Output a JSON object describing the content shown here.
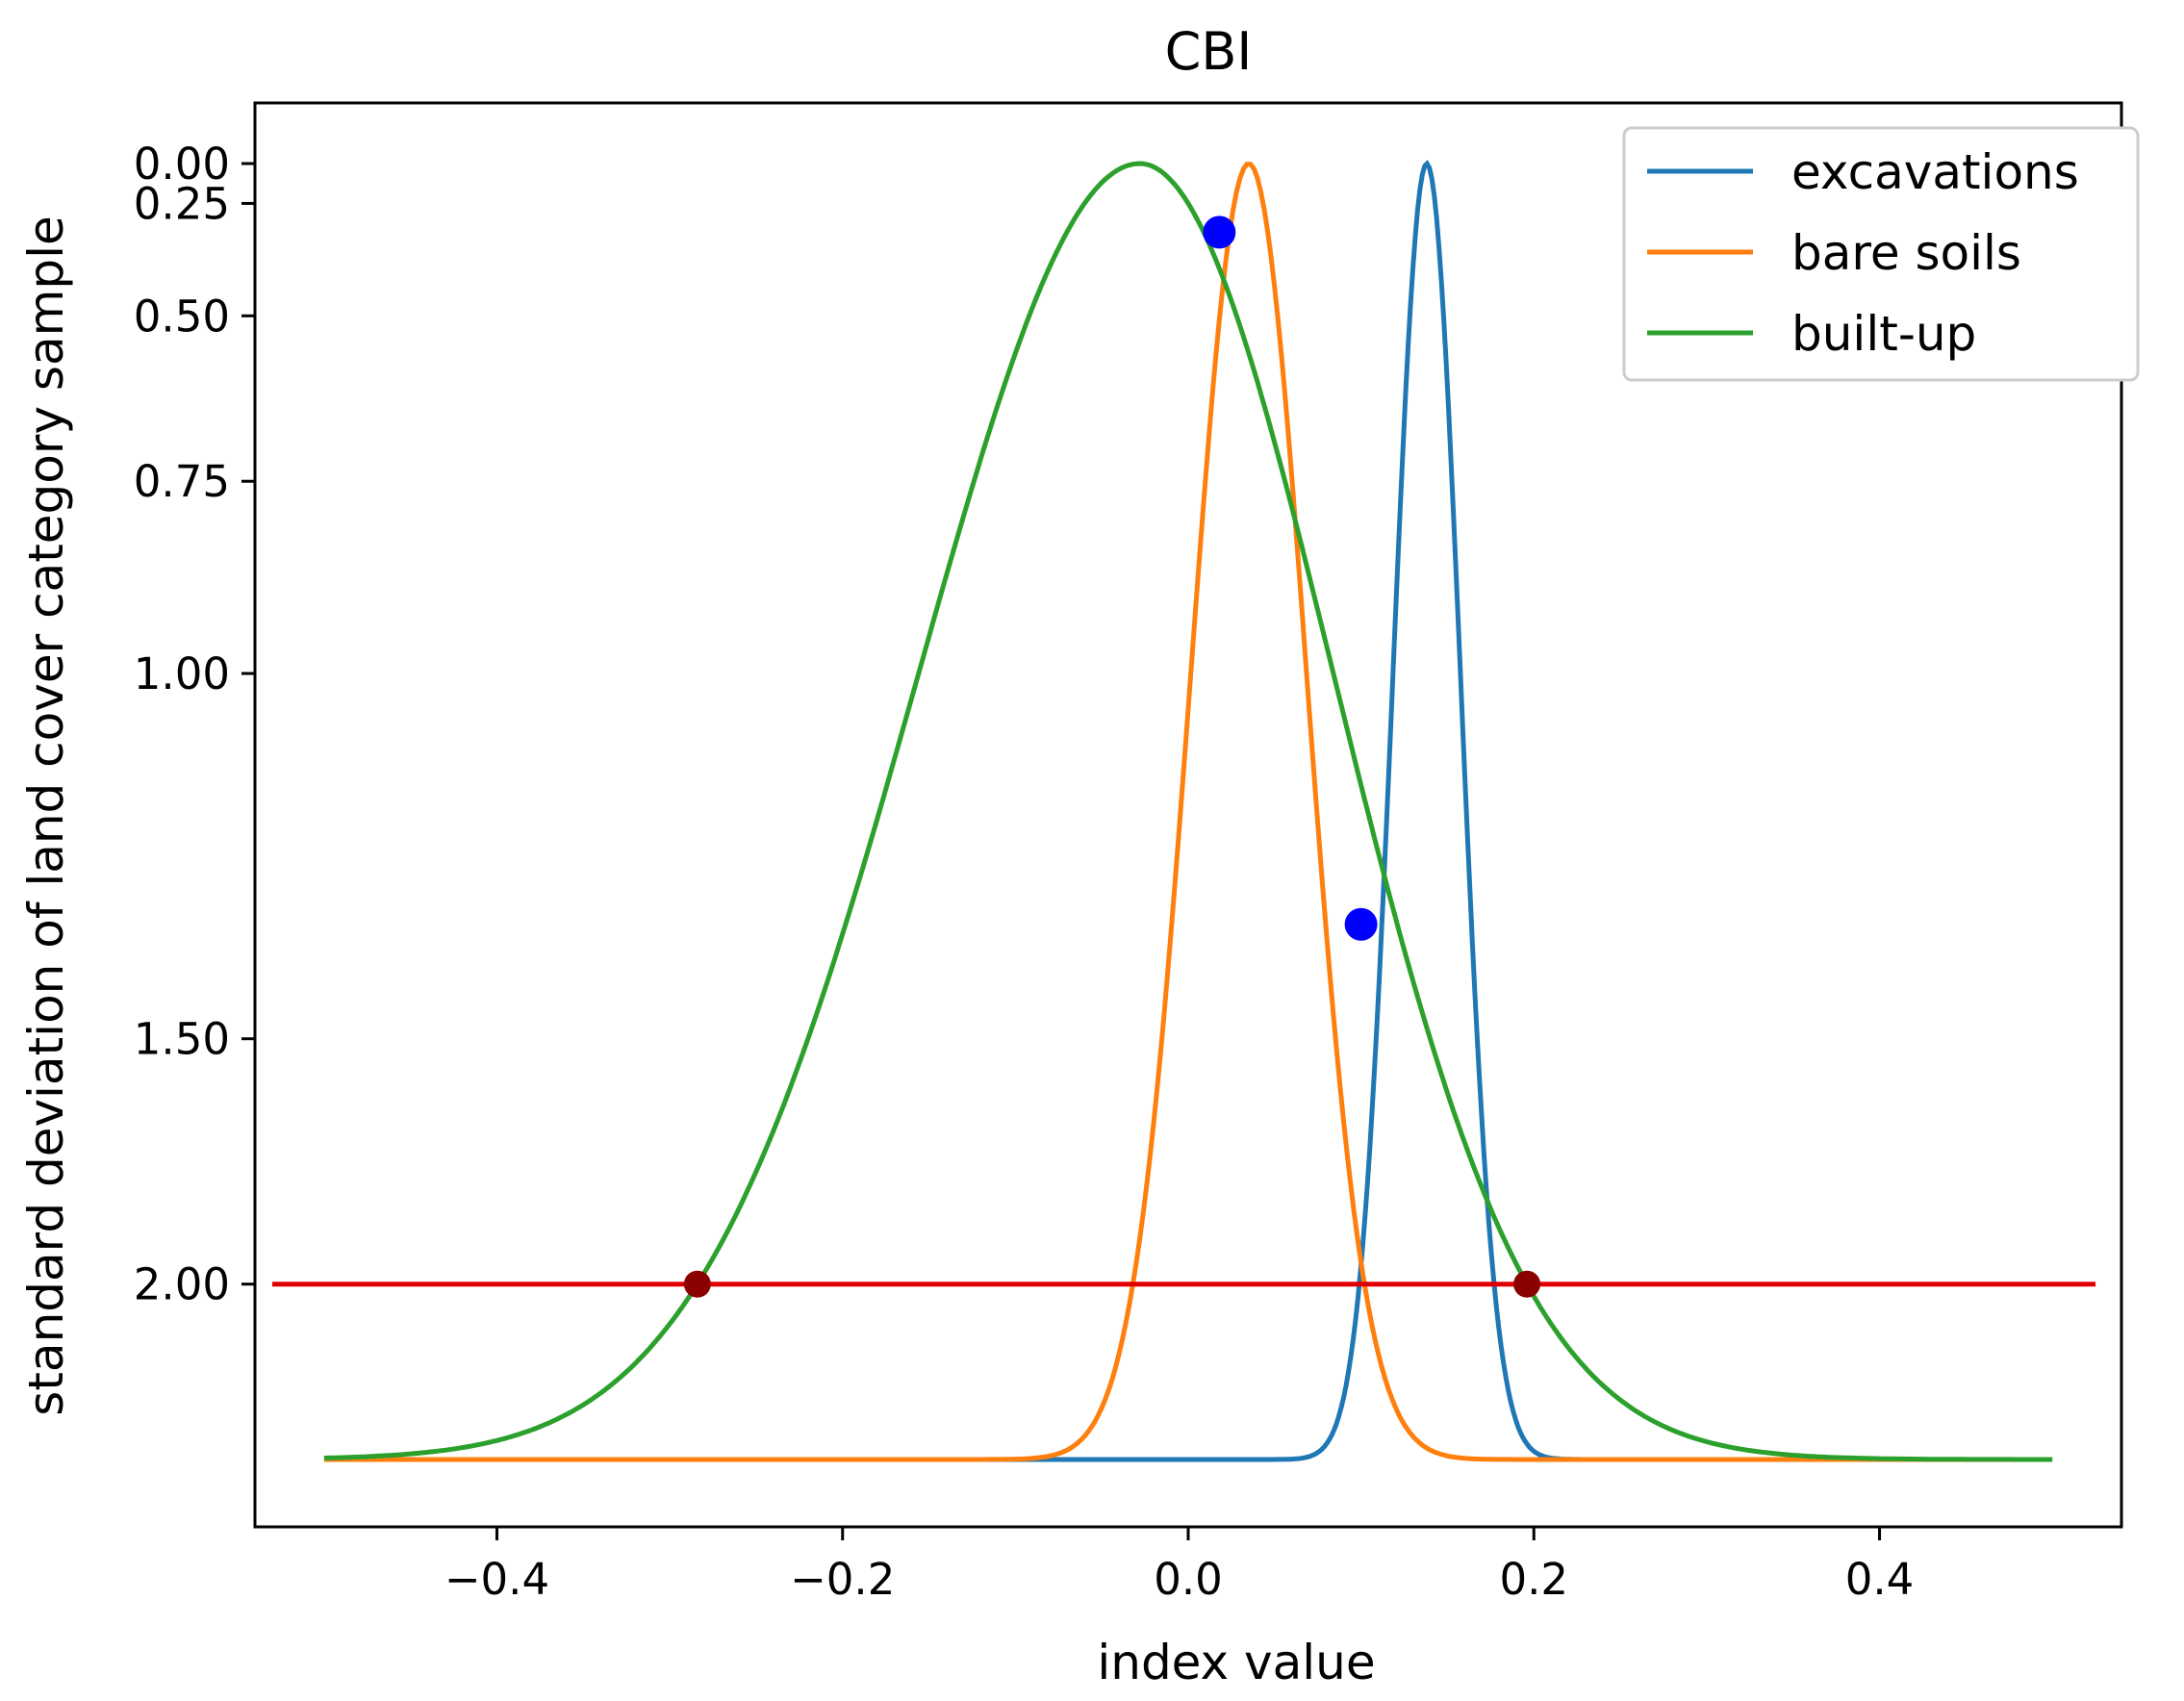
{
  "chart_data": {
    "type": "line",
    "title": "CBI",
    "xlabel": "index value",
    "ylabel": "standard deviation of land cover category sample",
    "xlim": [
      -0.54,
      0.54
    ],
    "ylim": [
      2.55,
      -0.12
    ],
    "x_ticks": [
      -0.4,
      -0.2,
      0.0,
      0.2,
      0.4
    ],
    "x_tick_labels": [
      "−0.4",
      "−0.2",
      "0.0",
      "0.2",
      "0.4"
    ],
    "y_ticks": [
      0.0,
      0.25,
      0.5,
      0.75,
      1.0,
      1.5,
      2.0
    ],
    "y_tick_labels": [
      "0.00",
      "0.25",
      "0.50",
      "0.75",
      "1.00",
      "1.50",
      "2.00"
    ],
    "y_scale_note": "y is the number of standard deviations from the category mean; axis is inverted (0 at top)",
    "legend_position": "top-right",
    "series": [
      {
        "name": "excavations",
        "color": "#1f77b4",
        "mean": 0.138,
        "sd": 0.0195,
        "x_range": [
          -0.4,
          0.29
        ]
      },
      {
        "name": "bare soils",
        "color": "#ff7f0e",
        "mean": 0.035,
        "sd": 0.0335,
        "x_range": [
          -0.5,
          0.5
        ]
      },
      {
        "name": "built-up",
        "color": "#2ca02c",
        "mean": -0.028,
        "sd": 0.128,
        "x_range": [
          -0.5,
          0.5
        ],
        "left_sd": 0.128,
        "right_sd": 0.112
      }
    ],
    "threshold_line": {
      "y": 2.0,
      "x_range": [
        -0.53,
        0.525
      ],
      "color": "#e00000"
    },
    "intersection_points": [
      {
        "x": 0.018,
        "y": 0.33,
        "color": "#0000ff"
      },
      {
        "x": 0.1,
        "y": 1.33,
        "color": "#0000ff"
      }
    ],
    "threshold_points": [
      {
        "x": -0.284,
        "y": 2.0,
        "color": "#8b0000"
      },
      {
        "x": 0.196,
        "y": 2.0,
        "color": "#8b0000"
      }
    ]
  }
}
